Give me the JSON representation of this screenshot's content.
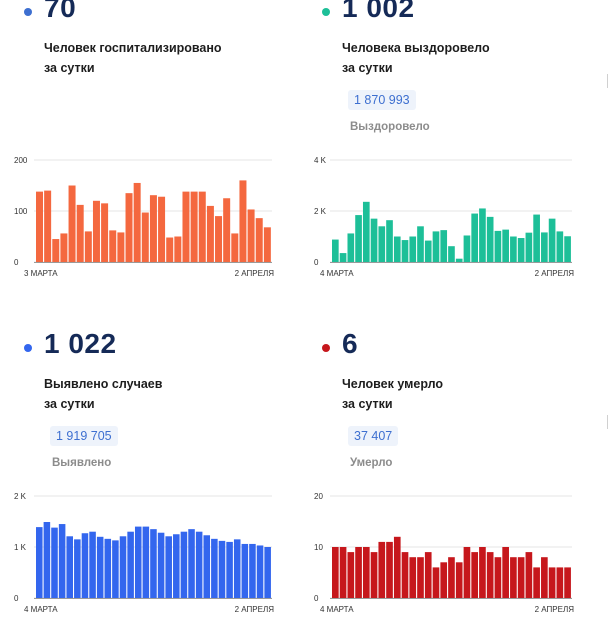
{
  "panels": [
    {
      "value": "70",
      "caption_line1": "Человек госпитализировано",
      "caption_line2": "за сутки",
      "total": "",
      "total_label": "",
      "color": "#f4683f",
      "dot_color": "#3d6fd0"
    },
    {
      "value": "1 002",
      "caption_line1": "Человека выздоровело",
      "caption_line2": "за сутки",
      "total": "1 870 993",
      "total_label": "Выздоровело",
      "color": "#1dbf98",
      "dot_color": "#1dbf98"
    },
    {
      "value": "1 022",
      "caption_line1": "Выявлено случаев",
      "caption_line2": "за сутки",
      "total": "1 919 705",
      "total_label": "Выявлено",
      "color": "#3366ee",
      "dot_color": "#3366ee"
    },
    {
      "value": "6",
      "caption_line1": "Человек умерло",
      "caption_line2": "за сутки",
      "total": "37 407",
      "total_label": "Умерло",
      "color": "#c6171c",
      "dot_color": "#c6171c"
    }
  ],
  "chart_data": [
    {
      "type": "bar",
      "x_start_label": "3 МАРТА",
      "x_end_label": "2 АПРЕЛЯ",
      "y_ticks": [
        "0",
        "100",
        "200"
      ],
      "ylim": [
        0,
        200
      ],
      "values": [
        138,
        140,
        45,
        56,
        150,
        112,
        60,
        120,
        115,
        62,
        58,
        135,
        155,
        97,
        131,
        128,
        48,
        50,
        138,
        138,
        138,
        110,
        90,
        125,
        56,
        160,
        103,
        86,
        68
      ]
    },
    {
      "type": "bar",
      "x_start_label": "4 МАРТА",
      "x_end_label": "2 АПРЕЛЯ",
      "y_ticks": [
        "0",
        "2 K",
        "4 K"
      ],
      "ylim": [
        0,
        4000
      ],
      "values": [
        880,
        350,
        1120,
        1840,
        2360,
        1700,
        1400,
        1640,
        1000,
        860,
        1000,
        1400,
        840,
        1200,
        1250,
        620,
        130,
        1040,
        1900,
        2100,
        1770,
        1220,
        1270,
        1000,
        940,
        1150,
        1860,
        1160,
        1700,
        1200,
        1010
      ]
    },
    {
      "type": "bar",
      "x_start_label": "4 МАРТА",
      "x_end_label": "2 АПРЕЛЯ",
      "y_ticks": [
        "0",
        "1 K",
        "2 K"
      ],
      "ylim": [
        0,
        2000
      ],
      "values": [
        1390,
        1490,
        1380,
        1450,
        1210,
        1150,
        1270,
        1300,
        1200,
        1160,
        1130,
        1210,
        1300,
        1400,
        1400,
        1350,
        1280,
        1210,
        1250,
        1300,
        1350,
        1300,
        1230,
        1160,
        1120,
        1100,
        1150,
        1060,
        1060,
        1030,
        1000
      ]
    },
    {
      "type": "bar",
      "x_start_label": "4 МАРТА",
      "x_end_label": "2 АПРЕЛЯ",
      "y_ticks": [
        "0",
        "10",
        "20"
      ],
      "ylim": [
        0,
        20
      ],
      "values": [
        10,
        10,
        9,
        10,
        10,
        9,
        11,
        11,
        12,
        9,
        8,
        8,
        9,
        6,
        7,
        8,
        7,
        10,
        9,
        10,
        9,
        8,
        10,
        8,
        8,
        9,
        6,
        8,
        6,
        6,
        6
      ]
    }
  ]
}
